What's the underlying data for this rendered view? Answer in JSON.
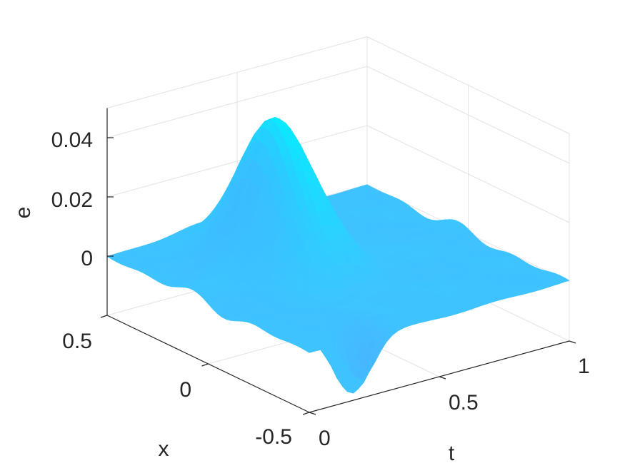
{
  "chart_data": {
    "type": "surface",
    "title": "",
    "xlabel": "x",
    "ylabel": "t",
    "zlabel": "e",
    "x_ticks": [
      "-0.5",
      "0",
      "0.5"
    ],
    "t_ticks": [
      "0",
      "0.5",
      "1"
    ],
    "z_ticks": [
      "0",
      "0.02",
      "0.04"
    ],
    "xlim": [
      -0.5,
      0.5
    ],
    "tlim": [
      0,
      1
    ],
    "zlim": [
      -0.02,
      0.05
    ],
    "grid": true,
    "colormap": "cool",
    "colors": {
      "surface_main": "#3fc3ff",
      "surface_peak": "#08eaff",
      "surface_shade": "#4fa8ff",
      "peak_edge": "#c83cff"
    },
    "surface_function": "e(x,t) = bump centered at x≈0.1, t≈0.35 with peak ≈0.049 plus small ripples of amplitude ≈0.003; localized dip near x=-0.5, t=0.2",
    "samples": [
      {
        "x": -0.5,
        "t": 0.0,
        "e": 0.0
      },
      {
        "x": 0.5,
        "t": 0.0,
        "e": 0.0
      },
      {
        "x": 0.5,
        "t": 1.0,
        "e": 0.0
      },
      {
        "x": -0.5,
        "t": 1.0,
        "e": 0.0
      },
      {
        "x": 0.1,
        "t": 0.35,
        "e": 0.049
      },
      {
        "x": -0.45,
        "t": 0.2,
        "e": -0.02
      }
    ]
  }
}
